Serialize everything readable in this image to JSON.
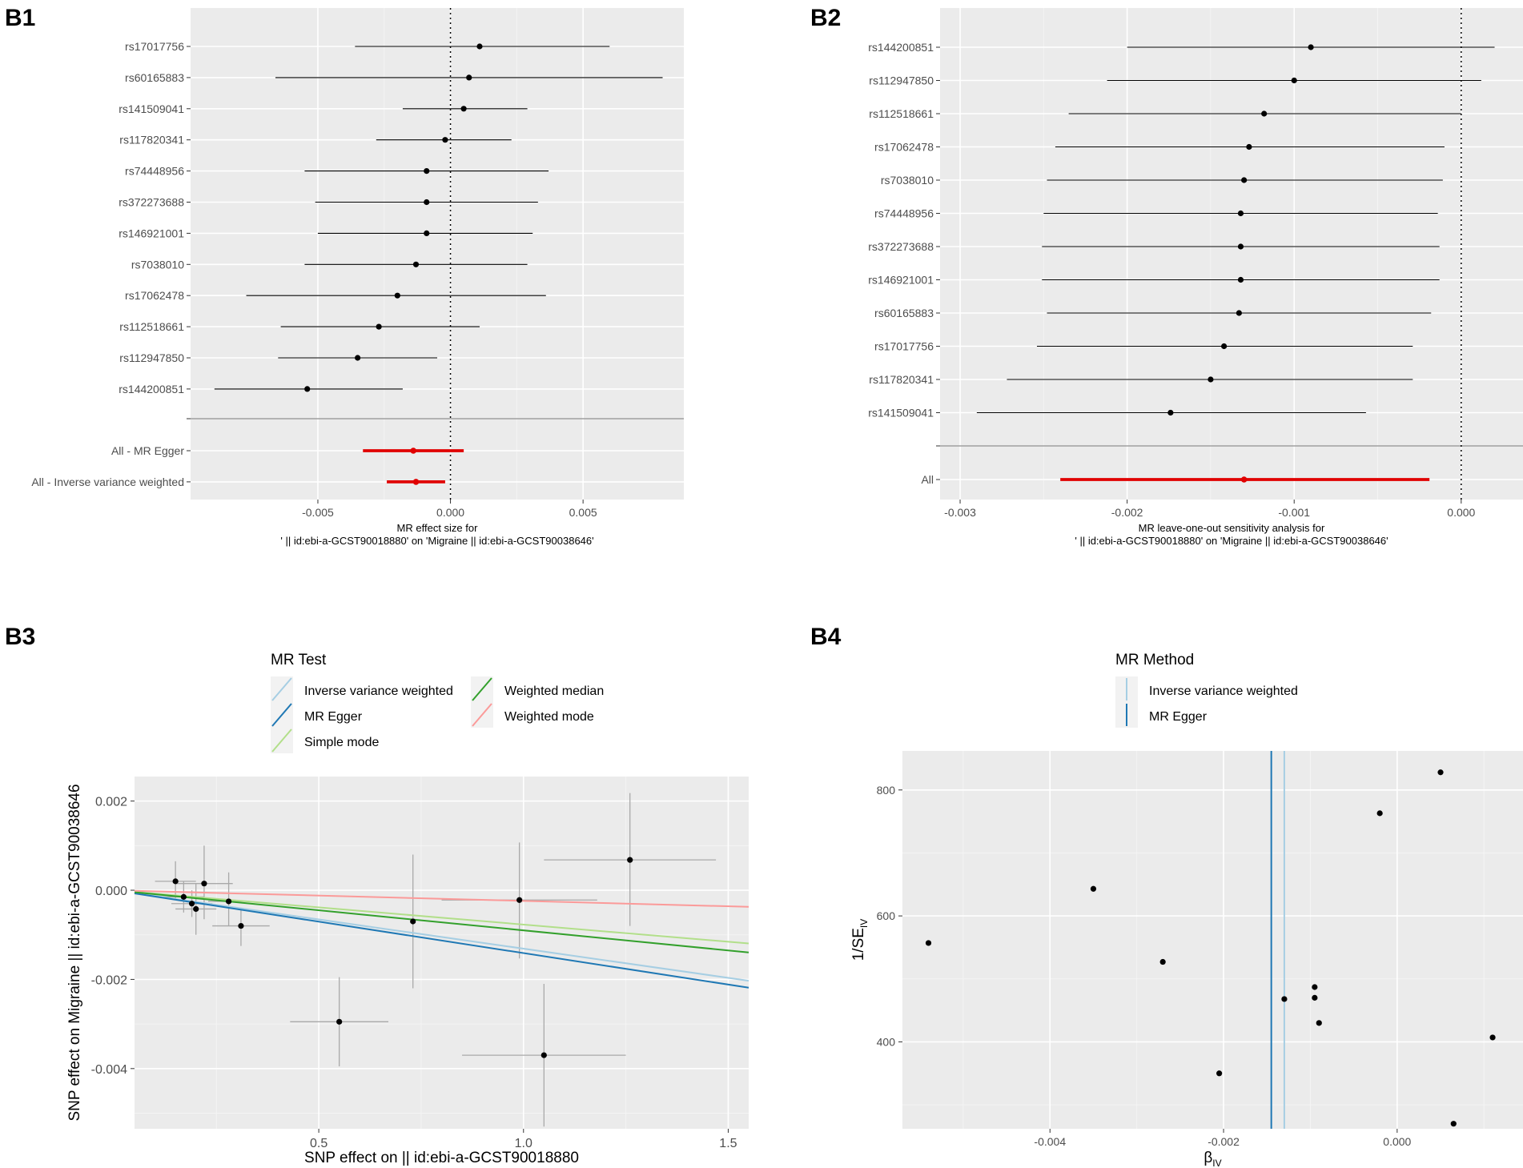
{
  "figure": {
    "panel_labels": [
      "B1",
      "B2",
      "B3",
      "B4"
    ]
  },
  "chart_data": [
    {
      "id": "B1",
      "type": "forest",
      "xlabel_line1": "MR effect size for",
      "xlabel_line2": "' || id:ebi-a-GCST90018880' on 'Migraine || id:ebi-a-GCST90038646'",
      "xlim": [
        -0.0098,
        0.0088
      ],
      "xticks": [
        {
          "value": -0.005,
          "label": "-0.005"
        },
        {
          "value": 0.0,
          "label": "0.000"
        },
        {
          "value": 0.005,
          "label": "0.005"
        }
      ],
      "reference_line": 0,
      "snps": [
        {
          "label": "rs17017756",
          "b": 0.0011,
          "lo": -0.0036,
          "hi": 0.006
        },
        {
          "label": "rs60165883",
          "b": 0.0007,
          "lo": -0.0066,
          "hi": 0.008
        },
        {
          "label": "rs141509041",
          "b": 0.0005,
          "lo": -0.0018,
          "hi": 0.0029
        },
        {
          "label": "rs117820341",
          "b": -0.0002,
          "lo": -0.0028,
          "hi": 0.0023
        },
        {
          "label": "rs74448956",
          "b": -0.0009,
          "lo": -0.0055,
          "hi": 0.0037
        },
        {
          "label": "rs372273688",
          "b": -0.0009,
          "lo": -0.0051,
          "hi": 0.0033
        },
        {
          "label": "rs146921001",
          "b": -0.0009,
          "lo": -0.005,
          "hi": 0.0031
        },
        {
          "label": "rs7038010",
          "b": -0.0013,
          "lo": -0.0055,
          "hi": 0.0029
        },
        {
          "label": "rs17062478",
          "b": -0.002,
          "lo": -0.0077,
          "hi": 0.0036
        },
        {
          "label": "rs112518661",
          "b": -0.0027,
          "lo": -0.0064,
          "hi": 0.0011
        },
        {
          "label": "rs112947850",
          "b": -0.0035,
          "lo": -0.0065,
          "hi": -0.0005
        },
        {
          "label": "rs144200851",
          "b": -0.0054,
          "lo": -0.0089,
          "hi": -0.0018
        }
      ],
      "summary": [
        {
          "label": "All - MR Egger",
          "b": -0.0014,
          "lo": -0.0033,
          "hi": 0.0005
        },
        {
          "label": "All - Inverse variance weighted",
          "b": -0.0013,
          "lo": -0.0024,
          "hi": -0.0002
        }
      ]
    },
    {
      "id": "B2",
      "type": "forest",
      "xlabel_line1": "MR leave-one-out sensitivity analysis for",
      "xlabel_line2": "' || id:ebi-a-GCST90018880' on 'Migraine || id:ebi-a-GCST90038646'",
      "xlim": [
        -0.00312,
        0.00037
      ],
      "xticks": [
        {
          "value": -0.003,
          "label": "-0.003"
        },
        {
          "value": -0.002,
          "label": "-0.002"
        },
        {
          "value": -0.001,
          "label": "-0.001"
        },
        {
          "value": 0.0,
          "label": "0.000"
        }
      ],
      "reference_line": 0,
      "snps": [
        {
          "label": "rs144200851",
          "b": -0.0009,
          "lo": -0.002,
          "hi": 0.0002
        },
        {
          "label": "rs112947850",
          "b": -0.001,
          "lo": -0.00212,
          "hi": 0.00012
        },
        {
          "label": "rs112518661",
          "b": -0.00118,
          "lo": -0.00235,
          "hi": 0.0
        },
        {
          "label": "rs17062478",
          "b": -0.00127,
          "lo": -0.00243,
          "hi": -0.0001
        },
        {
          "label": "rs7038010",
          "b": -0.0013,
          "lo": -0.00248,
          "hi": -0.00011
        },
        {
          "label": "rs74448956",
          "b": -0.00132,
          "lo": -0.0025,
          "hi": -0.00014
        },
        {
          "label": "rs372273688",
          "b": -0.00132,
          "lo": -0.00251,
          "hi": -0.00013
        },
        {
          "label": "rs146921001",
          "b": -0.00132,
          "lo": -0.00251,
          "hi": -0.00013
        },
        {
          "label": "rs60165883",
          "b": -0.00133,
          "lo": -0.00248,
          "hi": -0.00018
        },
        {
          "label": "rs17017756",
          "b": -0.00142,
          "lo": -0.00254,
          "hi": -0.00029
        },
        {
          "label": "rs117820341",
          "b": -0.0015,
          "lo": -0.00272,
          "hi": -0.00029
        },
        {
          "label": "rs141509041",
          "b": -0.00174,
          "lo": -0.0029,
          "hi": -0.00057
        }
      ],
      "summary": [
        {
          "label": "All",
          "b": -0.0013,
          "lo": -0.0024,
          "hi": -0.00019
        }
      ]
    },
    {
      "id": "B3",
      "type": "scatter",
      "xlabel": "SNP effect on  || id:ebi-a-GCST90018880",
      "ylabel": "SNP effect on Migraine || id:ebi-a-GCST90038646",
      "xlim": [
        0.05,
        1.55
      ],
      "ylim": [
        -0.00535,
        0.00255
      ],
      "xticks": [
        {
          "value": 0.5,
          "label": "0.5"
        },
        {
          "value": 1.0,
          "label": "1.0"
        },
        {
          "value": 1.5,
          "label": "1.5"
        }
      ],
      "yticks": [
        {
          "value": 0.002,
          "label": "0.002"
        },
        {
          "value": 0.0,
          "label": "0.000"
        },
        {
          "value": -0.002,
          "label": "-0.002"
        },
        {
          "value": -0.004,
          "label": "-0.004"
        }
      ],
      "legend": {
        "title": "MR Test",
        "position": "top",
        "entries": [
          {
            "name": "Inverse variance weighted",
            "color": "#a6cee3",
            "slope": -0.00131,
            "intercept": 0
          },
          {
            "name": "MR Egger",
            "color": "#1f78b4",
            "slope": -0.00141,
            "intercept": 0
          },
          {
            "name": "Simple mode",
            "color": "#b2df8a",
            "slope": -0.00077,
            "intercept": 0
          },
          {
            "name": "Weighted median",
            "color": "#33a02c",
            "slope": -0.0009,
            "intercept": 0
          },
          {
            "name": "Weighted mode",
            "color": "#fb9a99",
            "slope": -0.00024,
            "intercept": 0
          }
        ]
      },
      "points": [
        {
          "x": 0.15,
          "y": 0.0002,
          "xlo": 0.1,
          "xhi": 0.2,
          "ylo": -0.0002,
          "yhi": 0.00065
        },
        {
          "x": 0.17,
          "y": -0.00015,
          "xlo": 0.12,
          "xhi": 0.22,
          "ylo": -0.0005,
          "yhi": 0.0002
        },
        {
          "x": 0.19,
          "y": -0.0003,
          "xlo": 0.14,
          "xhi": 0.24,
          "ylo": -0.0006,
          "yhi": 0.0
        },
        {
          "x": 0.2,
          "y": -0.00042,
          "xlo": 0.15,
          "xhi": 0.25,
          "ylo": -0.001,
          "yhi": 0.00015
        },
        {
          "x": 0.22,
          "y": 0.00015,
          "xlo": 0.15,
          "xhi": 0.29,
          "ylo": -0.00065,
          "yhi": 0.001
        },
        {
          "x": 0.28,
          "y": -0.00025,
          "xlo": 0.23,
          "xhi": 0.33,
          "ylo": -0.0008,
          "yhi": 0.0004
        },
        {
          "x": 0.31,
          "y": -0.0008,
          "xlo": 0.24,
          "xhi": 0.38,
          "ylo": -0.00125,
          "yhi": -0.0004
        },
        {
          "x": 0.55,
          "y": -0.00295,
          "xlo": 0.43,
          "xhi": 0.67,
          "ylo": -0.00395,
          "yhi": -0.00195
        },
        {
          "x": 0.73,
          "y": -0.0007,
          "xlo": 0.73,
          "xhi": 0.73,
          "ylo": -0.0022,
          "yhi": 0.0008
        },
        {
          "x": 0.99,
          "y": -0.00022,
          "xlo": 0.8,
          "xhi": 1.18,
          "ylo": -0.00153,
          "yhi": 0.00107
        },
        {
          "x": 1.05,
          "y": -0.0037,
          "xlo": 0.85,
          "xhi": 1.25,
          "ylo": -0.0053,
          "yhi": -0.0021
        },
        {
          "x": 1.26,
          "y": 0.00068,
          "xlo": 1.05,
          "xhi": 1.47,
          "ylo": -0.0008,
          "yhi": 0.00218
        }
      ]
    },
    {
      "id": "B4",
      "type": "funnel",
      "xlabel": "β",
      "xlabel_sub": "IV",
      "ylabel_main": "1/SE",
      "ylabel_sub": "IV",
      "xlim": [
        -0.0057,
        0.00145
      ],
      "ylim": [
        262,
        862
      ],
      "xticks": [
        {
          "value": -0.004,
          "label": "-0.004"
        },
        {
          "value": -0.002,
          "label": "-0.002"
        },
        {
          "value": 0.0,
          "label": "0.000"
        }
      ],
      "yticks": [
        {
          "value": 800,
          "label": "800"
        },
        {
          "value": 600,
          "label": "600"
        },
        {
          "value": 400,
          "label": "400"
        }
      ],
      "legend": {
        "title": "MR Method",
        "position": "top",
        "entries": [
          {
            "name": "Inverse variance weighted",
            "color": "#a6cee3",
            "value": -0.0013
          },
          {
            "name": "MR Egger",
            "color": "#1f78b4",
            "value": -0.00145
          }
        ]
      },
      "points": [
        {
          "x": 0.0005,
          "y": 828
        },
        {
          "x": -0.0002,
          "y": 763
        },
        {
          "x": -0.0035,
          "y": 643
        },
        {
          "x": -0.0054,
          "y": 557
        },
        {
          "x": -0.0027,
          "y": 527
        },
        {
          "x": -0.00095,
          "y": 487
        },
        {
          "x": -0.00095,
          "y": 470
        },
        {
          "x": -0.0013,
          "y": 468
        },
        {
          "x": -0.0009,
          "y": 430
        },
        {
          "x": 0.0011,
          "y": 407
        },
        {
          "x": -0.00205,
          "y": 350
        },
        {
          "x": 0.00065,
          "y": 270
        }
      ]
    }
  ]
}
